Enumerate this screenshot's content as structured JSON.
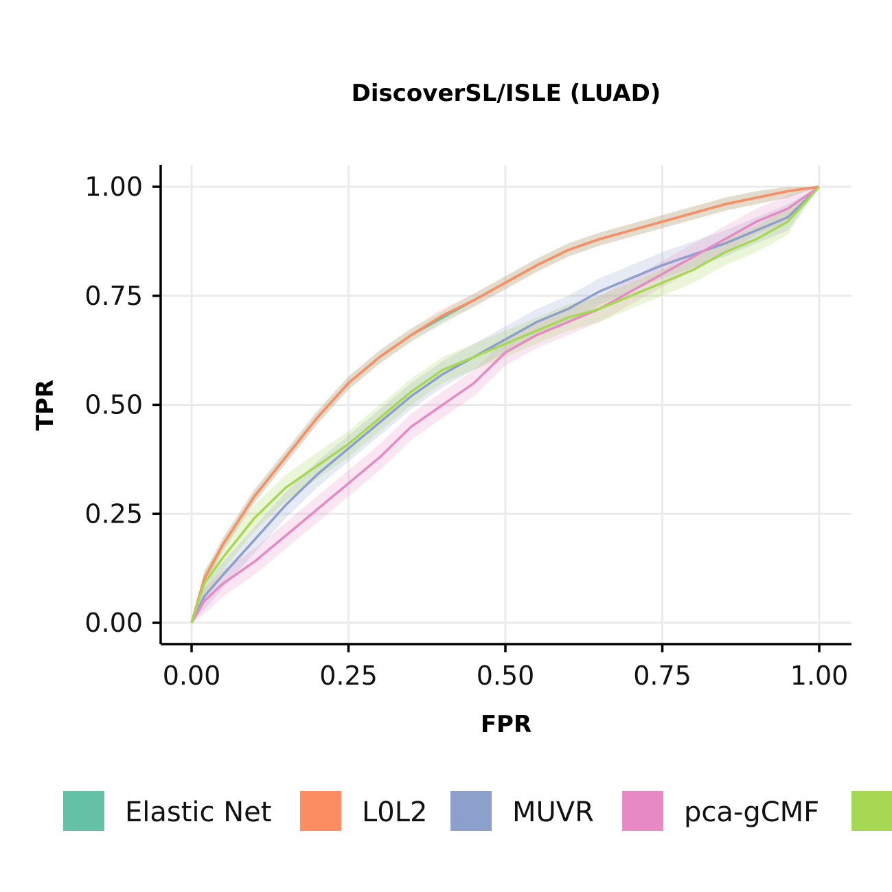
{
  "chart_data": {
    "type": "line",
    "title": "DiscoverSL/ISLE (LUAD)",
    "xlabel": "FPR",
    "ylabel": "TPR",
    "xlim": [
      0,
      1
    ],
    "ylim": [
      0,
      1
    ],
    "xticks": [
      "0.00",
      "0.25",
      "0.50",
      "0.75",
      "1.00"
    ],
    "yticks": [
      "0.00",
      "0.25",
      "0.50",
      "0.75",
      "1.00"
    ],
    "grid": true,
    "legend_position": "bottom",
    "series": [
      {
        "name": "Elastic Net",
        "color": "#66c2a5",
        "band": 0.015,
        "x": [
          0,
          0.02,
          0.05,
          0.1,
          0.15,
          0.2,
          0.25,
          0.3,
          0.35,
          0.4,
          0.45,
          0.5,
          0.55,
          0.6,
          0.65,
          0.7,
          0.75,
          0.8,
          0.85,
          0.9,
          0.95,
          1.0
        ],
        "y": [
          0,
          0.1,
          0.18,
          0.29,
          0.38,
          0.47,
          0.55,
          0.61,
          0.66,
          0.7,
          0.74,
          0.78,
          0.82,
          0.855,
          0.88,
          0.9,
          0.92,
          0.94,
          0.96,
          0.975,
          0.99,
          1.0
        ]
      },
      {
        "name": "L0L2",
        "color": "#fc8d62",
        "band": 0.015,
        "x": [
          0,
          0.02,
          0.05,
          0.1,
          0.15,
          0.2,
          0.25,
          0.3,
          0.35,
          0.4,
          0.45,
          0.5,
          0.55,
          0.6,
          0.65,
          0.7,
          0.75,
          0.8,
          0.85,
          0.9,
          0.95,
          1.0
        ],
        "y": [
          0,
          0.1,
          0.18,
          0.29,
          0.38,
          0.47,
          0.55,
          0.61,
          0.66,
          0.705,
          0.74,
          0.78,
          0.82,
          0.855,
          0.88,
          0.9,
          0.92,
          0.94,
          0.96,
          0.975,
          0.99,
          1.0
        ]
      },
      {
        "name": "MUVR",
        "color": "#8da0cb",
        "band": 0.03,
        "x": [
          0,
          0.02,
          0.05,
          0.1,
          0.15,
          0.2,
          0.25,
          0.3,
          0.35,
          0.4,
          0.45,
          0.5,
          0.55,
          0.6,
          0.65,
          0.7,
          0.75,
          0.8,
          0.85,
          0.9,
          0.95,
          1.0
        ],
        "y": [
          0,
          0.06,
          0.11,
          0.19,
          0.27,
          0.34,
          0.4,
          0.46,
          0.52,
          0.57,
          0.61,
          0.65,
          0.69,
          0.72,
          0.76,
          0.79,
          0.82,
          0.845,
          0.87,
          0.9,
          0.93,
          1.0
        ]
      },
      {
        "name": "pca-gCMF",
        "color": "#e78ac3",
        "band": 0.03,
        "x": [
          0,
          0.02,
          0.05,
          0.1,
          0.15,
          0.2,
          0.25,
          0.3,
          0.35,
          0.4,
          0.45,
          0.5,
          0.55,
          0.6,
          0.65,
          0.7,
          0.75,
          0.8,
          0.85,
          0.9,
          0.95,
          1.0
        ],
        "y": [
          0,
          0.05,
          0.09,
          0.14,
          0.2,
          0.26,
          0.32,
          0.38,
          0.45,
          0.5,
          0.55,
          0.62,
          0.66,
          0.69,
          0.72,
          0.76,
          0.8,
          0.84,
          0.88,
          0.92,
          0.95,
          1.0
        ]
      },
      {
        "name": "",
        "color": "#a6d854",
        "band": 0.03,
        "x": [
          0,
          0.02,
          0.05,
          0.1,
          0.15,
          0.2,
          0.25,
          0.3,
          0.35,
          0.4,
          0.45,
          0.5,
          0.55,
          0.6,
          0.65,
          0.7,
          0.75,
          0.8,
          0.85,
          0.9,
          0.95,
          1.0
        ],
        "y": [
          0,
          0.09,
          0.15,
          0.24,
          0.31,
          0.36,
          0.41,
          0.47,
          0.53,
          0.58,
          0.61,
          0.64,
          0.67,
          0.7,
          0.72,
          0.75,
          0.78,
          0.81,
          0.85,
          0.88,
          0.92,
          1.0
        ]
      }
    ]
  }
}
